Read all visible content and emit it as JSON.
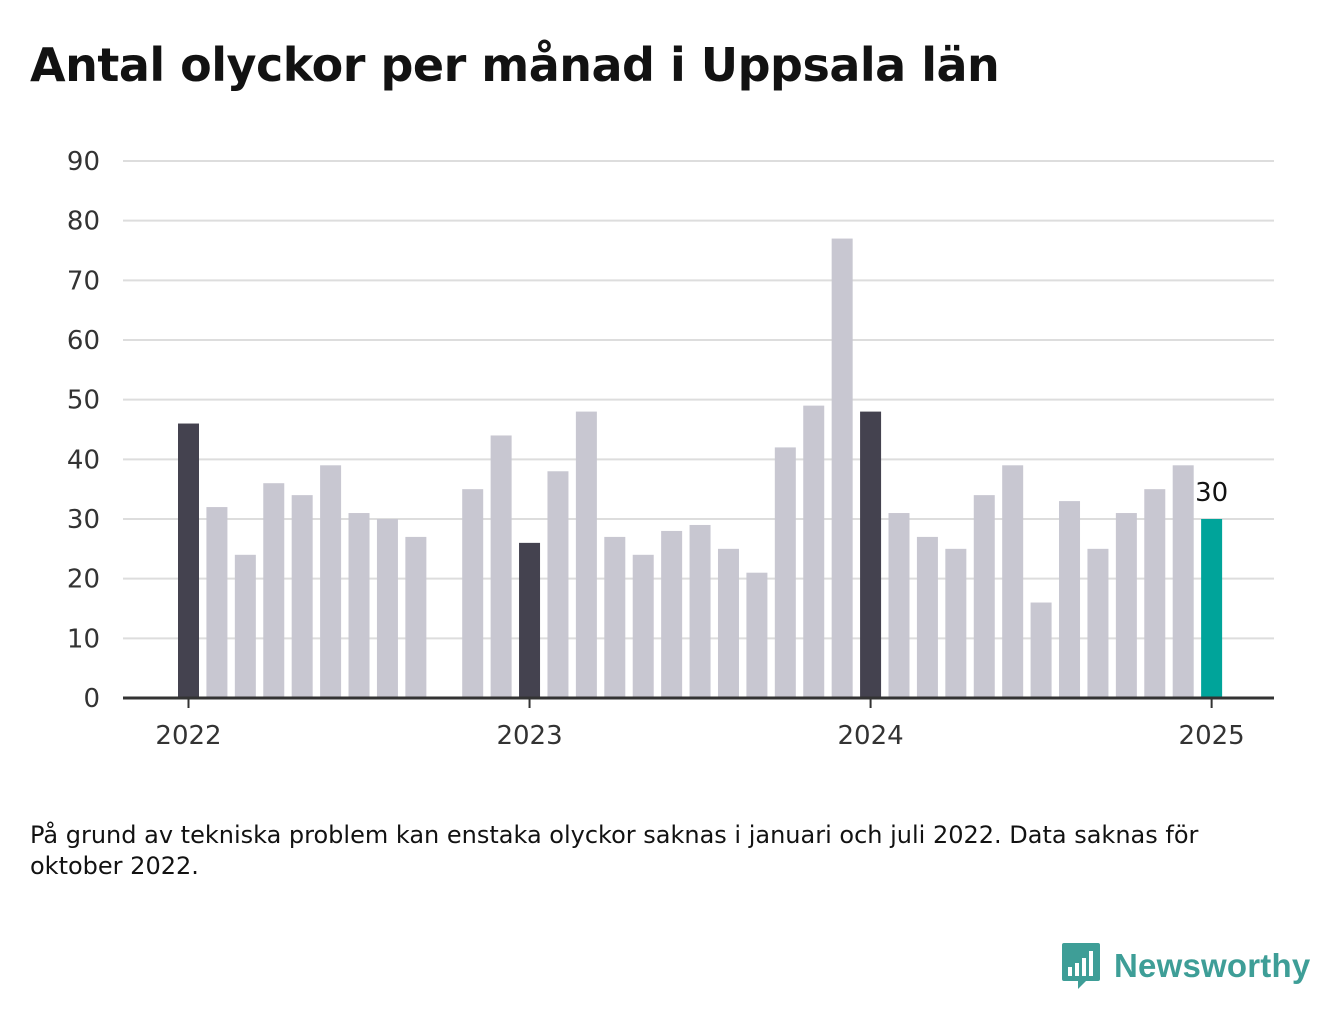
{
  "brand": {
    "name": "Newsworthy",
    "color": "#3e9e97"
  },
  "footnote": "På grund av tekniska problem kan enstaka olyckor saknas i januari och juli 2022. Data saknas för oktober 2022.",
  "colors": {
    "january": "#44424f",
    "other": "#c8c7d1",
    "latest": "#00a49a",
    "grid": "#dddddd",
    "axis": "#333333"
  },
  "chart_data": {
    "type": "bar",
    "title": "Antal olyckor per månad i Uppsala län",
    "xlabel": "",
    "ylabel": "",
    "ylim": [
      0,
      90
    ],
    "yticks": [
      0,
      10,
      20,
      30,
      40,
      50,
      60,
      70,
      80,
      90
    ],
    "xticks": [
      "2022",
      "2023",
      "2024",
      "2025"
    ],
    "grid": true,
    "categories": [
      "2022-01",
      "2022-02",
      "2022-03",
      "2022-04",
      "2022-05",
      "2022-06",
      "2022-07",
      "2022-08",
      "2022-09",
      "2022-10",
      "2022-11",
      "2022-12",
      "2023-01",
      "2023-02",
      "2023-03",
      "2023-04",
      "2023-05",
      "2023-06",
      "2023-07",
      "2023-08",
      "2023-09",
      "2023-10",
      "2023-11",
      "2023-12",
      "2024-01",
      "2024-02",
      "2024-03",
      "2024-04",
      "2024-05",
      "2024-06",
      "2024-07",
      "2024-08",
      "2024-09",
      "2024-10",
      "2024-11",
      "2024-12",
      "2025-01"
    ],
    "values": [
      46,
      32,
      24,
      36,
      34,
      39,
      31,
      30,
      27,
      null,
      35,
      44,
      26,
      38,
      48,
      27,
      24,
      28,
      29,
      25,
      21,
      42,
      49,
      77,
      48,
      31,
      27,
      25,
      34,
      39,
      16,
      33,
      25,
      31,
      35,
      39,
      30
    ],
    "annotation": {
      "category": "2025-01",
      "label": "30"
    }
  }
}
